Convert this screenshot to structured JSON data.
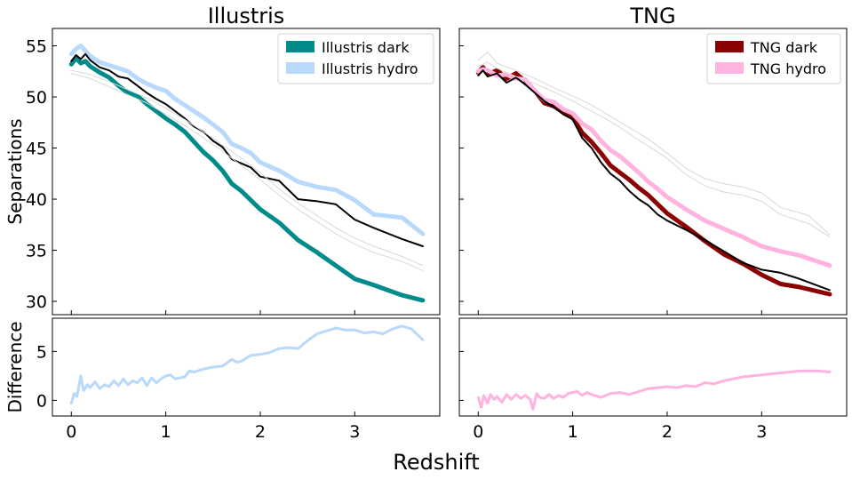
{
  "figure": {
    "xlabel": "Redshift",
    "ylabel_top": "Separations",
    "ylabel_bottom": "Difference"
  },
  "colors": {
    "illustris_dark": "#008b8b",
    "illustris_hydro": "#b8d9fb",
    "tng_dark": "#8b0000",
    "tng_hydro": "#ffb3de",
    "reference": "#000000",
    "faint": "#d8d8d8"
  },
  "chart_data": [
    {
      "type": "line",
      "panel": "illustris-separations",
      "title": "Illustris",
      "ylabel": "Separations",
      "xlim": [
        -0.2,
        3.9
      ],
      "ylim": [
        28.7,
        56.7
      ],
      "xticks": [
        0,
        1,
        2,
        3
      ],
      "yticks": [
        30,
        35,
        40,
        45,
        50,
        55
      ],
      "show_xtick_labels": false,
      "legend_position": "top-right",
      "series": [
        {
          "name": "Illustris dark",
          "color_key": "illustris_dark",
          "width": 5,
          "in_legend": true,
          "x": [
            0,
            0.05,
            0.1,
            0.15,
            0.2,
            0.3,
            0.4,
            0.5,
            0.6,
            0.7,
            0.8,
            0.9,
            1.0,
            1.1,
            1.2,
            1.3,
            1.4,
            1.5,
            1.6,
            1.7,
            1.8,
            1.9,
            2.0,
            2.2,
            2.4,
            2.6,
            2.8,
            3.0,
            3.2,
            3.5,
            3.72
          ],
          "y": [
            53.2,
            53.8,
            53.3,
            53.5,
            53.0,
            52.4,
            51.9,
            51.1,
            50.4,
            50.1,
            49.3,
            48.6,
            47.9,
            47.3,
            46.6,
            45.6,
            44.6,
            43.8,
            42.8,
            41.5,
            40.8,
            39.9,
            39.0,
            37.7,
            36.0,
            34.8,
            33.5,
            32.2,
            31.6,
            30.6,
            30.1
          ]
        },
        {
          "name": "Illustris hydro",
          "color_key": "illustris_hydro",
          "width": 5,
          "in_legend": true,
          "x": [
            0,
            0.05,
            0.1,
            0.15,
            0.2,
            0.3,
            0.4,
            0.5,
            0.6,
            0.7,
            0.8,
            0.9,
            1.0,
            1.1,
            1.2,
            1.3,
            1.4,
            1.5,
            1.6,
            1.7,
            1.8,
            1.9,
            2.0,
            2.2,
            2.4,
            2.6,
            2.8,
            3.0,
            3.2,
            3.5,
            3.72
          ],
          "y": [
            54.2,
            54.7,
            55.0,
            54.5,
            54.0,
            53.4,
            53.1,
            52.8,
            52.5,
            51.8,
            51.3,
            50.9,
            50.6,
            49.8,
            49.2,
            48.6,
            48.0,
            47.3,
            46.6,
            45.4,
            45.0,
            44.5,
            43.6,
            42.8,
            41.7,
            41.2,
            40.9,
            39.9,
            38.5,
            38.2,
            36.6
          ]
        },
        {
          "name": "",
          "color_key": "reference",
          "width": 2,
          "in_legend": false,
          "x": [
            0,
            0.05,
            0.1,
            0.15,
            0.2,
            0.3,
            0.4,
            0.5,
            0.6,
            0.7,
            0.8,
            0.9,
            1.0,
            1.1,
            1.2,
            1.3,
            1.4,
            1.5,
            1.6,
            1.7,
            1.8,
            1.9,
            2.0,
            2.2,
            2.4,
            2.6,
            2.8,
            3.0,
            3.2,
            3.5,
            3.72
          ],
          "y": [
            53.5,
            54.1,
            53.7,
            54.2,
            53.6,
            52.9,
            52.6,
            52.0,
            51.8,
            51.1,
            50.4,
            49.8,
            49.3,
            48.6,
            47.9,
            47.1,
            46.6,
            45.7,
            45.1,
            43.9,
            43.5,
            43.1,
            42.2,
            41.8,
            40.0,
            39.8,
            39.5,
            38.0,
            37.2,
            36.1,
            35.4
          ]
        },
        {
          "name": "",
          "color_key": "faint",
          "width": 1,
          "in_legend": false,
          "x": [
            0,
            0.2,
            0.4,
            0.6,
            0.8,
            1.0,
            1.2,
            1.4,
            1.6,
            1.8,
            2.0,
            2.2,
            2.4,
            2.6,
            2.8,
            3.0,
            3.2,
            3.5,
            3.72
          ],
          "y": [
            52.6,
            52.2,
            51.5,
            50.7,
            49.9,
            48.9,
            47.8,
            46.6,
            45.3,
            44.0,
            42.6,
            41.0,
            39.6,
            38.4,
            37.2,
            36.2,
            35.4,
            34.4,
            33.5
          ]
        },
        {
          "name": "",
          "color_key": "faint",
          "width": 1,
          "in_legend": false,
          "x": [
            0,
            0.2,
            0.4,
            0.6,
            0.8,
            1.0,
            1.2,
            1.4,
            1.6,
            1.8,
            2.0,
            2.2,
            2.4,
            2.6,
            2.8,
            3.0,
            3.2,
            3.5,
            3.72
          ],
          "y": [
            52.3,
            51.8,
            51.0,
            50.2,
            49.4,
            48.3,
            47.2,
            46.0,
            44.7,
            43.3,
            41.9,
            40.4,
            39.0,
            37.8,
            36.6,
            35.6,
            34.8,
            33.9,
            33.0
          ]
        }
      ]
    },
    {
      "type": "line",
      "panel": "tng-separations",
      "title": "TNG",
      "ylabel": "",
      "xlim": [
        -0.2,
        3.9
      ],
      "ylim": [
        28.7,
        56.7
      ],
      "xticks": [
        0,
        1,
        2,
        3
      ],
      "yticks": [
        30,
        35,
        40,
        45,
        50,
        55
      ],
      "show_xtick_labels": false,
      "legend_position": "top-right",
      "series": [
        {
          "name": "TNG dark",
          "color_key": "tng_dark",
          "width": 5,
          "in_legend": true,
          "x": [
            0,
            0.05,
            0.1,
            0.2,
            0.3,
            0.4,
            0.5,
            0.6,
            0.7,
            0.8,
            0.9,
            1.0,
            1.1,
            1.2,
            1.3,
            1.4,
            1.5,
            1.6,
            1.7,
            1.8,
            1.9,
            2.0,
            2.2,
            2.4,
            2.6,
            2.8,
            3.0,
            3.2,
            3.4,
            3.72
          ],
          "y": [
            52.4,
            52.9,
            52.2,
            52.6,
            51.8,
            52.3,
            51.5,
            50.6,
            49.4,
            49.1,
            48.5,
            48.0,
            46.5,
            45.6,
            44.5,
            43.3,
            42.6,
            41.9,
            41.1,
            40.4,
            39.5,
            38.6,
            37.3,
            35.9,
            34.6,
            33.7,
            32.6,
            31.7,
            31.4,
            30.7
          ]
        },
        {
          "name": "TNG hydro",
          "color_key": "tng_hydro",
          "width": 5,
          "in_legend": true,
          "x": [
            0,
            0.05,
            0.1,
            0.2,
            0.3,
            0.4,
            0.5,
            0.6,
            0.7,
            0.8,
            0.9,
            1.0,
            1.1,
            1.2,
            1.3,
            1.4,
            1.5,
            1.6,
            1.7,
            1.8,
            1.9,
            2.0,
            2.2,
            2.4,
            2.6,
            2.8,
            3.0,
            3.2,
            3.4,
            3.72
          ],
          "y": [
            52.5,
            52.7,
            52.6,
            52.1,
            52.2,
            51.8,
            51.7,
            50.6,
            49.7,
            49.5,
            48.8,
            48.4,
            47.4,
            46.8,
            45.7,
            44.8,
            44.2,
            43.4,
            42.6,
            41.7,
            41.0,
            40.2,
            39.0,
            37.9,
            37.1,
            36.3,
            35.4,
            34.9,
            34.5,
            33.5
          ]
        },
        {
          "name": "",
          "color_key": "reference",
          "width": 2,
          "in_legend": false,
          "x": [
            0,
            0.05,
            0.1,
            0.2,
            0.3,
            0.4,
            0.5,
            0.6,
            0.7,
            0.8,
            0.9,
            1.0,
            1.1,
            1.2,
            1.3,
            1.4,
            1.5,
            1.6,
            1.7,
            1.8,
            1.9,
            2.0,
            2.2,
            2.4,
            2.6,
            2.8,
            3.0,
            3.2,
            3.4,
            3.72
          ],
          "y": [
            52.1,
            52.6,
            52.0,
            52.3,
            51.4,
            51.9,
            51.2,
            50.4,
            49.6,
            49.0,
            48.3,
            47.8,
            46.0,
            45.0,
            43.6,
            42.5,
            41.8,
            40.8,
            40.0,
            39.4,
            38.5,
            37.9,
            37.0,
            36.0,
            34.9,
            33.8,
            33.1,
            32.8,
            32.2,
            31.1
          ]
        },
        {
          "name": "",
          "color_key": "faint",
          "width": 1,
          "in_legend": false,
          "x": [
            0,
            0.1,
            0.2,
            0.4,
            0.6,
            0.8,
            1.0,
            1.2,
            1.4,
            1.6,
            1.8,
            2.0,
            2.2,
            2.4,
            2.6,
            2.8,
            3.0,
            3.2,
            3.5,
            3.72
          ],
          "y": [
            53.6,
            54.4,
            53.3,
            52.6,
            51.8,
            50.9,
            50.1,
            49.2,
            48.1,
            47.0,
            45.9,
            44.5,
            43.0,
            42.0,
            41.5,
            41.2,
            40.6,
            39.2,
            38.4,
            36.5
          ]
        },
        {
          "name": "",
          "color_key": "faint",
          "width": 1,
          "in_legend": false,
          "x": [
            0,
            0.1,
            0.2,
            0.4,
            0.6,
            0.8,
            1.0,
            1.2,
            1.4,
            1.6,
            1.8,
            2.0,
            2.2,
            2.4,
            2.6,
            2.8,
            3.0,
            3.2,
            3.5,
            3.72
          ],
          "y": [
            53.0,
            53.4,
            52.8,
            52.0,
            51.3,
            50.5,
            49.6,
            48.6,
            47.6,
            46.4,
            45.2,
            44.0,
            42.4,
            41.3,
            40.7,
            40.4,
            39.8,
            38.5,
            37.6,
            36.3
          ]
        }
      ]
    },
    {
      "type": "line",
      "panel": "illustris-difference",
      "title": "",
      "ylabel": "Difference",
      "xlim": [
        -0.2,
        3.9
      ],
      "ylim": [
        -1.6,
        8.4
      ],
      "xticks": [
        0,
        1,
        2,
        3
      ],
      "yticks": [
        0,
        5
      ],
      "show_xtick_labels": true,
      "series": [
        {
          "name": "",
          "color_key": "illustris_hydro",
          "width": 3,
          "in_legend": false,
          "x": [
            0,
            0.03,
            0.06,
            0.1,
            0.13,
            0.17,
            0.2,
            0.25,
            0.3,
            0.35,
            0.4,
            0.45,
            0.5,
            0.55,
            0.6,
            0.65,
            0.7,
            0.75,
            0.8,
            0.85,
            0.9,
            0.95,
            1.0,
            1.05,
            1.1,
            1.2,
            1.25,
            1.3,
            1.4,
            1.5,
            1.6,
            1.7,
            1.75,
            1.8,
            1.9,
            2.0,
            2.1,
            2.2,
            2.3,
            2.4,
            2.5,
            2.6,
            2.7,
            2.8,
            2.9,
            3.0,
            3.1,
            3.2,
            3.3,
            3.4,
            3.5,
            3.6,
            3.72
          ],
          "y": [
            -0.3,
            0.7,
            0.4,
            2.5,
            1.0,
            1.6,
            1.3,
            1.9,
            1.2,
            1.6,
            1.4,
            2.0,
            1.5,
            2.2,
            1.6,
            2.0,
            1.8,
            2.3,
            1.5,
            2.3,
            1.8,
            2.2,
            2.5,
            2.6,
            2.2,
            2.4,
            3.0,
            2.9,
            3.2,
            3.4,
            3.5,
            4.2,
            3.9,
            4.0,
            4.6,
            4.7,
            4.9,
            5.3,
            5.4,
            5.3,
            6.1,
            6.8,
            7.1,
            7.4,
            7.2,
            7.2,
            6.9,
            7.0,
            6.8,
            7.3,
            7.6,
            7.3,
            6.2
          ]
        }
      ]
    },
    {
      "type": "line",
      "panel": "tng-difference",
      "title": "",
      "ylabel": "",
      "xlim": [
        -0.2,
        3.9
      ],
      "ylim": [
        -1.6,
        8.4
      ],
      "xticks": [
        0,
        1,
        2,
        3
      ],
      "yticks": [
        0,
        5
      ],
      "show_xtick_labels": true,
      "series": [
        {
          "name": "",
          "color_key": "tng_hydro",
          "width": 3,
          "in_legend": false,
          "x": [
            0,
            0.03,
            0.06,
            0.1,
            0.13,
            0.17,
            0.2,
            0.25,
            0.3,
            0.35,
            0.4,
            0.45,
            0.5,
            0.55,
            0.58,
            0.62,
            0.65,
            0.7,
            0.75,
            0.8,
            0.85,
            0.9,
            0.95,
            1.0,
            1.05,
            1.1,
            1.15,
            1.2,
            1.3,
            1.4,
            1.5,
            1.6,
            1.7,
            1.8,
            1.9,
            2.0,
            2.1,
            2.2,
            2.3,
            2.4,
            2.5,
            2.6,
            2.7,
            2.8,
            2.9,
            3.0,
            3.2,
            3.4,
            3.6,
            3.72
          ],
          "y": [
            0.3,
            -0.7,
            0.5,
            -0.3,
            0.6,
            0.1,
            0.4,
            -0.2,
            0.6,
            0.1,
            0.6,
            0.2,
            0.5,
            0.1,
            -0.9,
            0.7,
            0.3,
            0.2,
            0.6,
            0.2,
            0.5,
            0.3,
            0.7,
            0.8,
            0.9,
            0.5,
            0.8,
            0.6,
            0.3,
            0.7,
            0.8,
            0.6,
            0.9,
            1.2,
            1.3,
            1.4,
            1.3,
            1.5,
            1.4,
            1.8,
            1.7,
            2.0,
            2.2,
            2.4,
            2.5,
            2.6,
            2.8,
            3.0,
            3.0,
            2.9
          ]
        }
      ]
    }
  ]
}
